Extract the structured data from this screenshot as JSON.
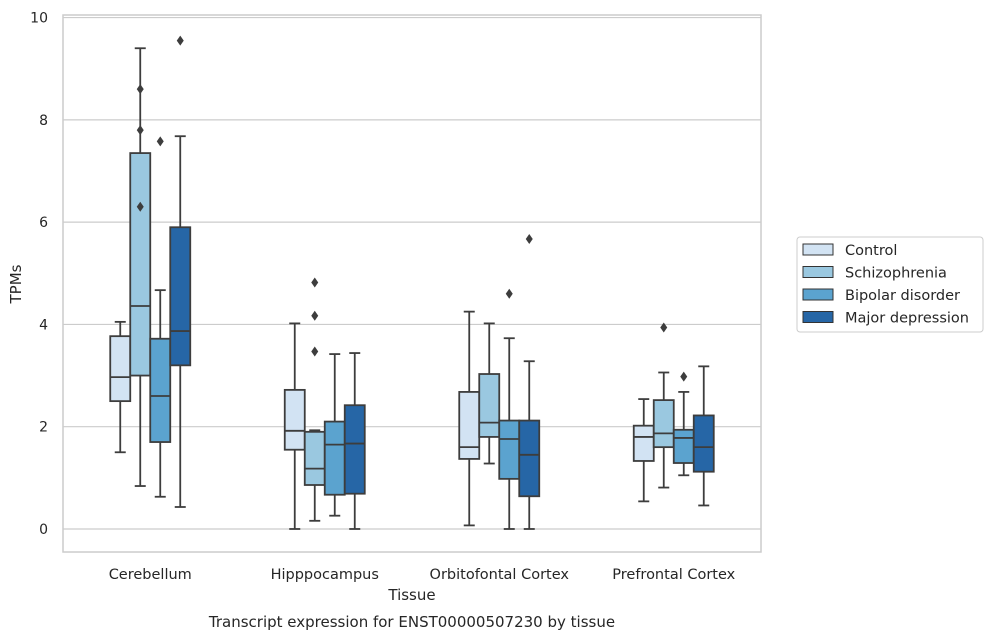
{
  "chart_data": {
    "type": "box",
    "title": "",
    "caption": "Transcript expression for ENST00000507230 by tissue",
    "xlabel": "Tissue",
    "ylabel": "TPMs",
    "ylim": [
      -0.45,
      10.05
    ],
    "yticks": [
      0,
      2,
      4,
      6,
      8,
      10
    ],
    "grid": "horizontal",
    "legend_position": "right",
    "categories": [
      "Cerebellum",
      "Hipppocampus",
      "Orbitofontal Cortex",
      "Prefrontal Cortex"
    ],
    "series": [
      {
        "name": "Control",
        "color": "#d2e3f3",
        "boxes": [
          {
            "whisker_low": 1.5,
            "q1": 2.5,
            "median": 2.97,
            "q3": 3.77,
            "whisker_high": 4.05,
            "outliers": []
          },
          {
            "whisker_low": 0.0,
            "q1": 1.55,
            "median": 1.92,
            "q3": 2.72,
            "whisker_high": 4.02,
            "outliers": []
          },
          {
            "whisker_low": 0.07,
            "q1": 1.37,
            "median": 1.6,
            "q3": 2.68,
            "whisker_high": 4.25,
            "outliers": []
          },
          {
            "whisker_low": 0.54,
            "q1": 1.33,
            "median": 1.8,
            "q3": 2.02,
            "whisker_high": 2.54,
            "outliers": []
          }
        ]
      },
      {
        "name": "Schizophrenia",
        "color": "#9ac8e0",
        "boxes": [
          {
            "whisker_low": 0.84,
            "q1": 3.0,
            "median": 4.36,
            "q3": 7.35,
            "whisker_high": 9.4,
            "outliers": [
              6.3,
              7.8,
              8.6
            ]
          },
          {
            "whisker_low": 0.16,
            "q1": 0.86,
            "median": 1.18,
            "q3": 1.9,
            "whisker_high": 1.93,
            "outliers": [
              3.47,
              4.17,
              4.82
            ]
          },
          {
            "whisker_low": 1.28,
            "q1": 1.8,
            "median": 2.08,
            "q3": 3.03,
            "whisker_high": 4.02,
            "outliers": []
          },
          {
            "whisker_low": 0.81,
            "q1": 1.6,
            "median": 1.87,
            "q3": 2.52,
            "whisker_high": 3.06,
            "outliers": [
              3.94
            ]
          }
        ]
      },
      {
        "name": "Bipolar disorder",
        "color": "#5ba3cf",
        "boxes": [
          {
            "whisker_low": 0.63,
            "q1": 1.7,
            "median": 2.6,
            "q3": 3.72,
            "whisker_high": 4.67,
            "outliers": [
              7.58
            ]
          },
          {
            "whisker_low": 0.26,
            "q1": 0.67,
            "median": 1.65,
            "q3": 2.1,
            "whisker_high": 3.42,
            "outliers": []
          },
          {
            "whisker_low": 0.0,
            "q1": 0.98,
            "median": 1.76,
            "q3": 2.12,
            "whisker_high": 3.73,
            "outliers": [
              4.6
            ]
          },
          {
            "whisker_low": 1.05,
            "q1": 1.29,
            "median": 1.78,
            "q3": 1.94,
            "whisker_high": 2.68,
            "outliers": [
              2.98
            ]
          }
        ]
      },
      {
        "name": "Major depression",
        "color": "#2666a6",
        "boxes": [
          {
            "whisker_low": 0.43,
            "q1": 3.2,
            "median": 3.87,
            "q3": 5.9,
            "whisker_high": 7.68,
            "outliers": [
              9.55
            ]
          },
          {
            "whisker_low": 0.0,
            "q1": 0.69,
            "median": 1.67,
            "q3": 2.42,
            "whisker_high": 3.44,
            "outliers": []
          },
          {
            "whisker_low": 0.0,
            "q1": 0.64,
            "median": 1.45,
            "q3": 2.12,
            "whisker_high": 3.28,
            "outliers": [
              5.67
            ]
          },
          {
            "whisker_low": 0.46,
            "q1": 1.12,
            "median": 1.6,
            "q3": 2.22,
            "whisker_high": 3.18,
            "outliers": []
          }
        ]
      }
    ]
  }
}
